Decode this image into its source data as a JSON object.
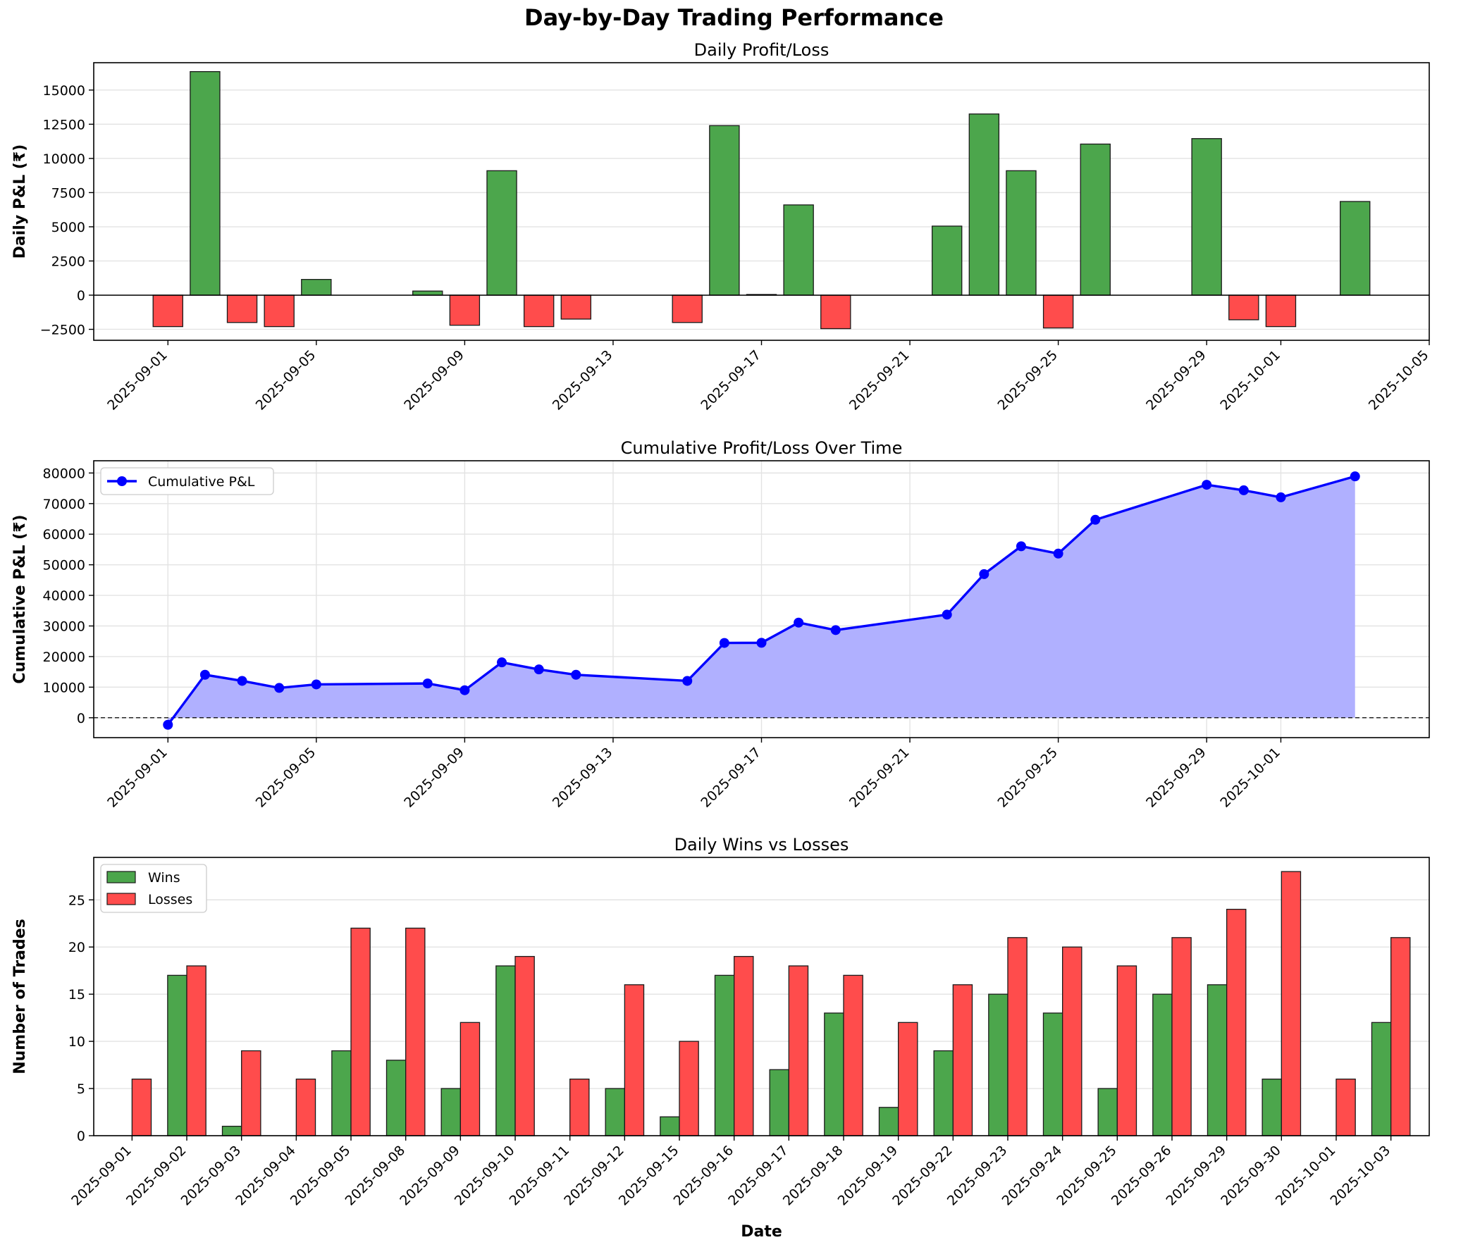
{
  "figure": {
    "title": "Day-by-Day Trading Performance"
  },
  "colors": {
    "profit": "#4ca64c",
    "loss": "#ff4c4c",
    "line": "#0000ff",
    "fill": "#b0b0ff",
    "edge": "#1a1a1a"
  },
  "chart_data": [
    {
      "id": "daily",
      "type": "bar",
      "title": "Daily Profit/Loss",
      "xlabel": "",
      "ylabel": "Daily P&L (₹)",
      "x_axis_type": "date",
      "xlim": [
        "2025-08-30",
        "2025-10-05"
      ],
      "ylim": [
        -3300,
        17000
      ],
      "yticks": [
        -2500,
        0,
        2500,
        5000,
        7500,
        10000,
        12500,
        15000
      ],
      "xtick_labels": [
        "2025-09-01",
        "2025-09-05",
        "2025-09-09",
        "2025-09-13",
        "2025-09-17",
        "2025-09-21",
        "2025-09-25",
        "2025-09-29",
        "2025-10-01",
        "2025-10-05"
      ],
      "grid": "y",
      "data": [
        {
          "date": "2025-09-01",
          "value": -2300
        },
        {
          "date": "2025-09-02",
          "value": 16350
        },
        {
          "date": "2025-09-03",
          "value": -2000
        },
        {
          "date": "2025-09-04",
          "value": -2300
        },
        {
          "date": "2025-09-05",
          "value": 1150
        },
        {
          "date": "2025-09-08",
          "value": 300
        },
        {
          "date": "2025-09-09",
          "value": -2200
        },
        {
          "date": "2025-09-10",
          "value": 9100
        },
        {
          "date": "2025-09-11",
          "value": -2300
        },
        {
          "date": "2025-09-12",
          "value": -1750
        },
        {
          "date": "2025-09-15",
          "value": -2000
        },
        {
          "date": "2025-09-16",
          "value": 12400
        },
        {
          "date": "2025-09-17",
          "value": 50
        },
        {
          "date": "2025-09-18",
          "value": 6600
        },
        {
          "date": "2025-09-19",
          "value": -2450
        },
        {
          "date": "2025-09-22",
          "value": 5050
        },
        {
          "date": "2025-09-23",
          "value": 13250
        },
        {
          "date": "2025-09-24",
          "value": 9100
        },
        {
          "date": "2025-09-25",
          "value": -2400
        },
        {
          "date": "2025-09-26",
          "value": 11050
        },
        {
          "date": "2025-09-29",
          "value": 11450
        },
        {
          "date": "2025-09-30",
          "value": -1800
        },
        {
          "date": "2025-10-01",
          "value": -2300
        },
        {
          "date": "2025-10-03",
          "value": 6850
        }
      ]
    },
    {
      "id": "cumulative",
      "type": "area",
      "title": "Cumulative Profit/Loss Over Time",
      "xlabel": "",
      "ylabel": "Cumulative P&L (₹)",
      "x_axis_type": "date",
      "xlim": [
        "2025-08-30",
        "2025-10-05"
      ],
      "ylim": [
        -6500,
        84000
      ],
      "yticks": [
        0,
        10000,
        20000,
        30000,
        40000,
        50000,
        60000,
        70000,
        80000
      ],
      "xtick_labels": [
        "2025-09-01",
        "2025-09-05",
        "2025-09-09",
        "2025-09-13",
        "2025-09-17",
        "2025-09-21",
        "2025-09-25",
        "2025-09-29",
        "2025-10-01"
      ],
      "grid": "both",
      "legend": {
        "position": "top-left",
        "label": "Cumulative P&L"
      },
      "series": [
        {
          "name": "Cumulative P&L",
          "points": [
            {
              "date": "2025-09-01",
              "value": -2300
            },
            {
              "date": "2025-09-02",
              "value": 14050
            },
            {
              "date": "2025-09-03",
              "value": 12050
            },
            {
              "date": "2025-09-04",
              "value": 9750
            },
            {
              "date": "2025-09-05",
              "value": 10900
            },
            {
              "date": "2025-09-08",
              "value": 11200
            },
            {
              "date": "2025-09-09",
              "value": 9000
            },
            {
              "date": "2025-09-10",
              "value": 18100
            },
            {
              "date": "2025-09-11",
              "value": 15800
            },
            {
              "date": "2025-09-12",
              "value": 14050
            },
            {
              "date": "2025-09-15",
              "value": 12050
            },
            {
              "date": "2025-09-16",
              "value": 24450
            },
            {
              "date": "2025-09-17",
              "value": 24500
            },
            {
              "date": "2025-09-18",
              "value": 31100
            },
            {
              "date": "2025-09-19",
              "value": 28650
            },
            {
              "date": "2025-09-22",
              "value": 33700
            },
            {
              "date": "2025-09-23",
              "value": 46950
            },
            {
              "date": "2025-09-24",
              "value": 56050
            },
            {
              "date": "2025-09-25",
              "value": 53650
            },
            {
              "date": "2025-09-26",
              "value": 64700
            },
            {
              "date": "2025-09-29",
              "value": 76150
            },
            {
              "date": "2025-09-30",
              "value": 74350
            },
            {
              "date": "2025-10-01",
              "value": 72050
            },
            {
              "date": "2025-10-03",
              "value": 78900
            }
          ]
        }
      ]
    },
    {
      "id": "wins_losses",
      "type": "bar",
      "title": "Daily Wins vs Losses",
      "xlabel": "Date",
      "ylabel": "Number of Trades",
      "ylim": [
        0,
        29.5
      ],
      "yticks": [
        0,
        5,
        10,
        15,
        20,
        25
      ],
      "grid": "y",
      "legend": {
        "position": "top-left"
      },
      "categories": [
        "2025-09-01",
        "2025-09-02",
        "2025-09-03",
        "2025-09-04",
        "2025-09-05",
        "2025-09-08",
        "2025-09-09",
        "2025-09-10",
        "2025-09-11",
        "2025-09-12",
        "2025-09-15",
        "2025-09-16",
        "2025-09-17",
        "2025-09-18",
        "2025-09-19",
        "2025-09-22",
        "2025-09-23",
        "2025-09-24",
        "2025-09-25",
        "2025-09-26",
        "2025-09-29",
        "2025-09-30",
        "2025-10-01",
        "2025-10-03"
      ],
      "series": [
        {
          "name": "Wins",
          "values": [
            0,
            17,
            1,
            0,
            9,
            8,
            5,
            18,
            0,
            5,
            2,
            17,
            7,
            13,
            3,
            9,
            15,
            13,
            5,
            15,
            16,
            6,
            0,
            12
          ]
        },
        {
          "name": "Losses",
          "values": [
            6,
            18,
            9,
            6,
            22,
            22,
            12,
            19,
            6,
            16,
            10,
            19,
            18,
            17,
            12,
            16,
            21,
            20,
            18,
            21,
            24,
            28,
            6,
            21
          ]
        }
      ]
    }
  ]
}
